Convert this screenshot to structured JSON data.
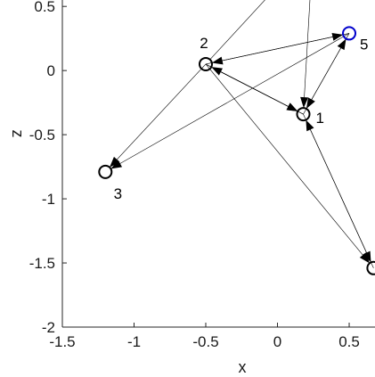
{
  "chart_data": {
    "type": "scatter",
    "title": "",
    "xlabel": "x",
    "ylabel": "z",
    "xlim": [
      -1.5,
      0.68
    ],
    "ylim": [
      -2,
      0.55
    ],
    "xticks": [
      -1.5,
      -1,
      -0.5,
      0,
      0.5
    ],
    "xtick_labels": [
      "-1.5",
      "-1",
      "-0.5",
      "0",
      "0.5"
    ],
    "yticks": [
      -2,
      -1.5,
      -1,
      -0.5,
      0,
      0.5
    ],
    "ytick_labels": [
      "-2",
      "-1.5",
      "-1",
      "-0.5",
      "0",
      "0.5"
    ],
    "grid": false,
    "nodes": [
      {
        "label": "1",
        "x": 0.18,
        "z": -0.34,
        "color": "#000000"
      },
      {
        "label": "2",
        "x": -0.5,
        "z": 0.05,
        "color": "#000000"
      },
      {
        "label": "3",
        "x": -1.2,
        "z": -0.79,
        "color": "#000000"
      },
      {
        "label": "",
        "x": 0.67,
        "z": -1.54,
        "color": "#000000"
      },
      {
        "label": "5",
        "x": 0.5,
        "z": 0.29,
        "color": "#0000cc"
      }
    ],
    "edges": [
      {
        "from": 1,
        "to": 0,
        "arrow": true
      },
      {
        "from": 0,
        "to": 1,
        "arrow": false
      },
      {
        "from": 4,
        "to": 1,
        "arrow": true
      },
      {
        "from": 1,
        "to": 4,
        "arrow": true
      },
      {
        "from": 4,
        "to": 0,
        "arrow": true
      },
      {
        "from": 0,
        "to": 4,
        "arrow": true
      },
      {
        "from": 4,
        "to": 2,
        "arrow": true
      },
      {
        "from": 1,
        "to": 2,
        "arrow": true
      },
      {
        "from": 1,
        "to": 3,
        "arrow": true
      },
      {
        "from": 0,
        "to": 3,
        "arrow": true
      },
      {
        "from": 3,
        "to": 0,
        "arrow": true
      },
      {
        "from": 0,
        "to": 1,
        "arrow": true
      },
      {
        "from": 1,
        "to": 0,
        "arrow": true
      }
    ],
    "offscreen_edges": [
      {
        "from_x": 0.23,
        "from_z": 0.62,
        "to_node": 0,
        "arrow": true
      },
      {
        "from_x": -0.03,
        "from_z": 0.62,
        "to_node": 1,
        "arrow": false
      }
    ]
  }
}
